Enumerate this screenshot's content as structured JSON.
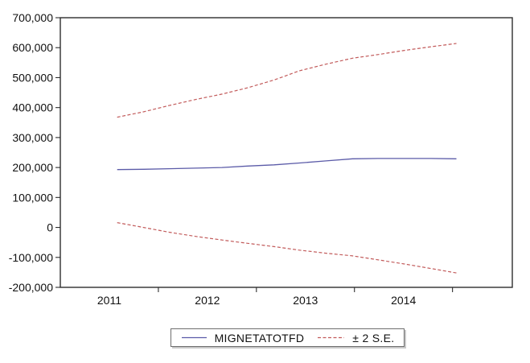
{
  "chart_data": {
    "type": "line",
    "title": "",
    "xlabel": "",
    "ylabel": "",
    "grid": false,
    "frame_color": "#2e2e2e",
    "background_color": "#ffffff",
    "x": [
      2011.58,
      2011.85,
      2012.11,
      2012.38,
      2012.65,
      2012.91,
      2013.18,
      2013.44,
      2013.71,
      2013.98,
      2014.24,
      2014.51,
      2014.78,
      2015.04
    ],
    "series": [
      {
        "name": "MIGNETATOTFD",
        "color": "#5b5ba8",
        "style": "solid",
        "values": [
          193000,
          194000,
          196000,
          198000,
          200000,
          205000,
          209000,
          215000,
          222000,
          229000,
          230000,
          230000,
          230000,
          229000
        ]
      },
      {
        "name": "± 2 S.E. (upper)",
        "color": "#c25b5b",
        "style": "dashed",
        "values": [
          368000,
          386000,
          407000,
          427000,
          445000,
          466000,
          492000,
          523000,
          545000,
          565000,
          577000,
          591000,
          603000,
          614000
        ]
      },
      {
        "name": "± 2 S.E. (lower)",
        "color": "#c25b5b",
        "style": "dashed",
        "values": [
          16000,
          0,
          -16000,
          -30000,
          -42000,
          -53000,
          -64000,
          -76000,
          -86000,
          -95000,
          -108000,
          -122000,
          -137000,
          -152000
        ]
      }
    ],
    "ylim": [
      -200000,
      700000
    ],
    "xlim": [
      2011,
      2015.61
    ],
    "yticks": [
      {
        "v": 700000,
        "label": "700,000"
      },
      {
        "v": 600000,
        "label": "600,000"
      },
      {
        "v": 500000,
        "label": "500,000"
      },
      {
        "v": 400000,
        "label": "400,000"
      },
      {
        "v": 300000,
        "label": "300,000"
      },
      {
        "v": 200000,
        "label": "200,000"
      },
      {
        "v": 100000,
        "label": "100,000"
      },
      {
        "v": 0,
        "label": "0"
      },
      {
        "v": -100000,
        "label": "-100,000"
      },
      {
        "v": -200000,
        "label": "-200,000"
      }
    ],
    "xticks": [
      {
        "v": 2011.5,
        "label": "2011"
      },
      {
        "v": 2012.5,
        "label": "2012"
      },
      {
        "v": 2013.5,
        "label": "2013"
      },
      {
        "v": 2014.5,
        "label": "2014"
      }
    ],
    "xtick_boundaries": [
      2012,
      2013,
      2014,
      2015
    ],
    "legend": [
      {
        "label": "MIGNETATOTFD",
        "color": "#5b5ba8",
        "style": "solid"
      },
      {
        "label": "± 2 S.E.",
        "color": "#c25b5b",
        "style": "dashed"
      }
    ],
    "legend_position": "bottom-center"
  }
}
